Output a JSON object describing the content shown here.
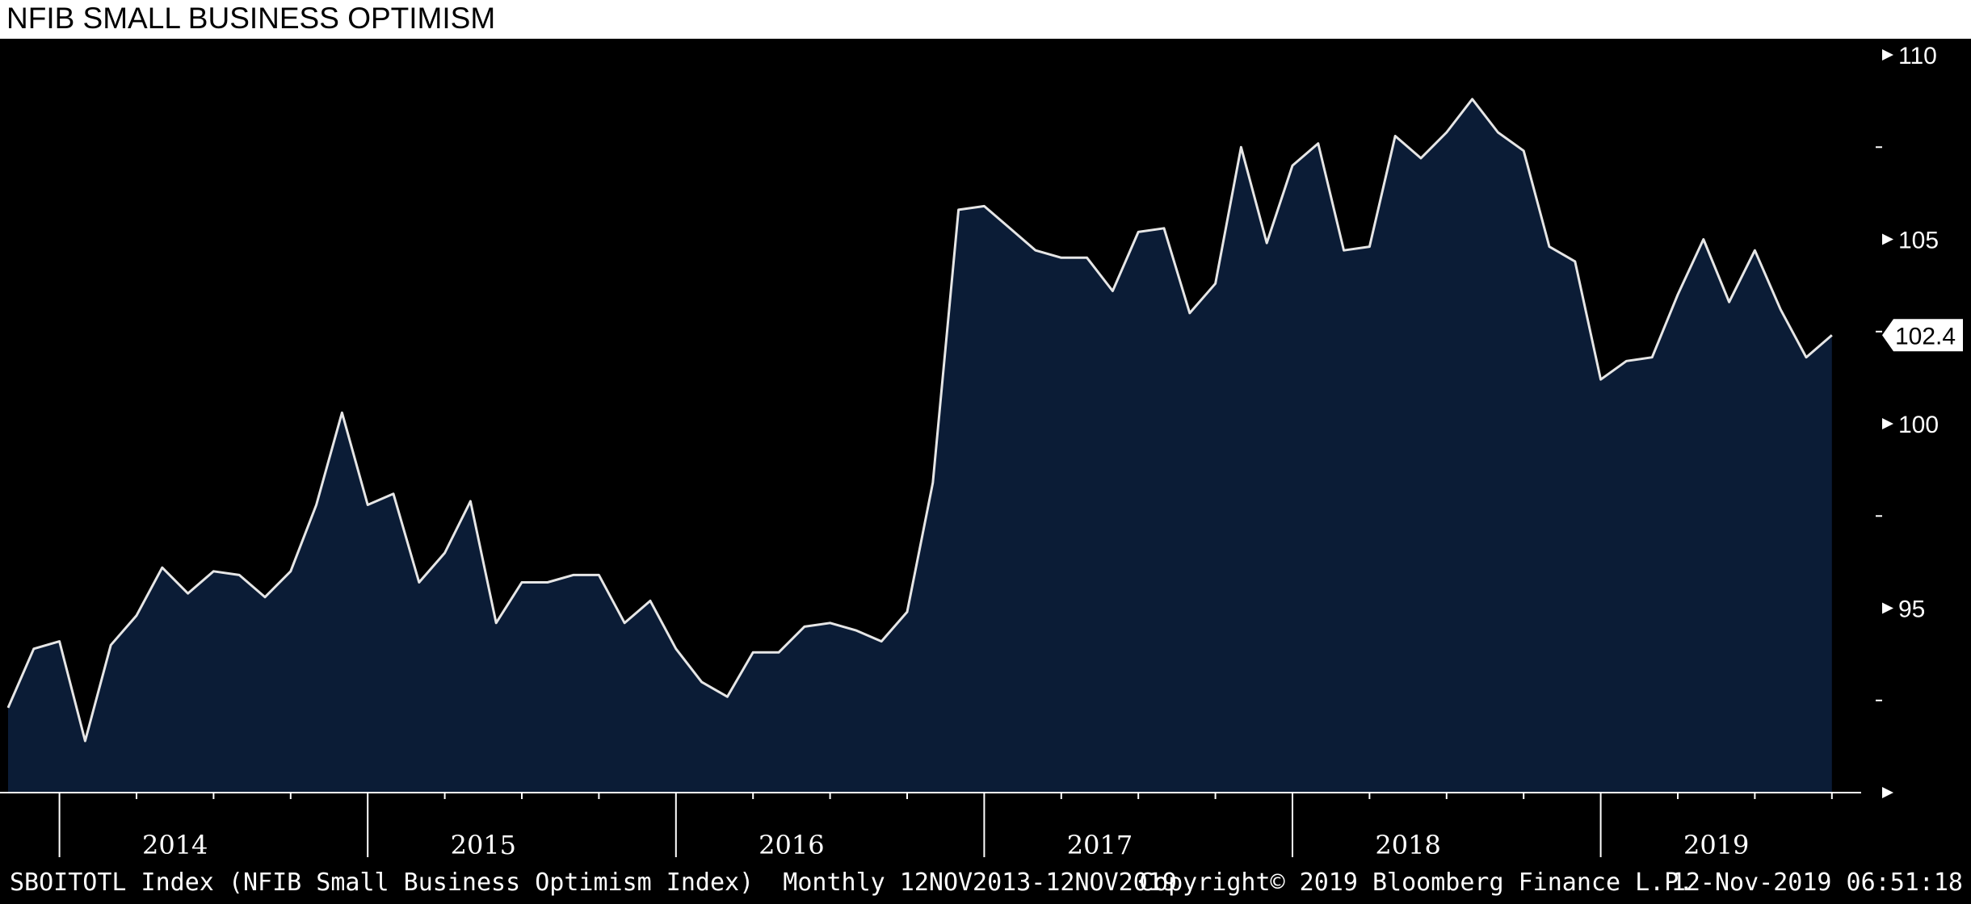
{
  "chart_data": {
    "type": "area",
    "title": "NFIB SMALL BUSINESS OPTIMISM",
    "series": [
      {
        "start": "2013-11",
        "frequency": "monthly",
        "values": [
          92.3,
          93.9,
          94.1,
          91.4,
          94.0,
          94.8,
          96.1,
          95.4,
          96.0,
          95.9,
          95.3,
          96.0,
          97.8,
          100.3,
          97.8,
          98.1,
          95.7,
          96.5,
          97.9,
          94.6,
          95.7,
          95.7,
          95.9,
          95.9,
          94.6,
          95.2,
          93.9,
          93.0,
          92.6,
          93.8,
          93.8,
          94.5,
          94.6,
          94.4,
          94.1,
          94.9,
          98.4,
          105.8,
          105.9,
          105.3,
          104.7,
          104.5,
          104.5,
          103.6,
          105.2,
          105.3,
          103.0,
          103.8,
          107.5,
          104.9,
          107.0,
          107.6,
          104.7,
          104.8,
          107.8,
          107.2,
          107.9,
          108.8,
          107.9,
          107.4,
          104.8,
          104.4,
          101.2,
          101.7,
          101.8,
          103.5,
          105.0,
          103.3,
          104.7,
          103.1,
          101.8,
          102.4
        ]
      }
    ],
    "x_labels": [
      "2014",
      "2015",
      "2016",
      "2017",
      "2018",
      "2019"
    ],
    "y_ticks": [
      95,
      100,
      105,
      110
    ],
    "ylim": [
      90,
      110
    ],
    "last_value_label": "102.4",
    "grid": false
  },
  "footer": {
    "series_description": "SBOITOTL Index (NFIB Small Business Optimism Index)  Monthly 12NOV2013-12NOV2019",
    "copyright": "Copyright© 2019 Bloomberg Finance L.P.",
    "timestamp": "12-Nov-2019 06:51:18"
  },
  "colors": {
    "background": "#000000",
    "plot_area": "#000000",
    "area_fill": "#0b1c36",
    "line": "#e6e6e6",
    "axis": "#ffffff",
    "title_background": "#ffffff"
  }
}
